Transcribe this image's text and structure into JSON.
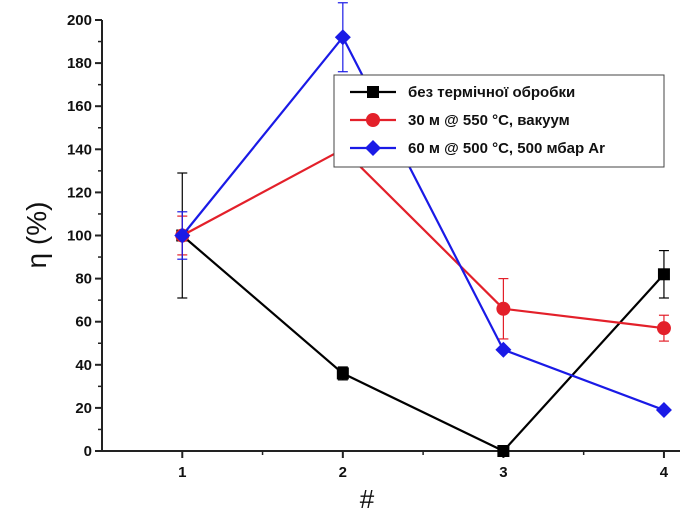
{
  "chart_data": {
    "type": "line",
    "xlabel": "#",
    "ylabel": "η (%)",
    "categories": [
      "1",
      "2",
      "3",
      "4"
    ],
    "x": [
      1,
      2,
      3,
      4
    ],
    "xlim": [
      0.5,
      4.1
    ],
    "ylim": [
      0,
      200
    ],
    "yticks": [
      0,
      20,
      40,
      60,
      80,
      100,
      120,
      140,
      160,
      180,
      200
    ],
    "grid": false,
    "legend_position": "top-right",
    "series": [
      {
        "name": "без термічної обробки",
        "color": "#000000",
        "marker": "square",
        "values": [
          100,
          36,
          0,
          82
        ],
        "error": [
          29,
          3,
          0,
          11
        ]
      },
      {
        "name": "30 м @ 550 °C, вакуум",
        "color": "#e3202a",
        "marker": "circle",
        "values": [
          100,
          140,
          66,
          57
        ],
        "error": [
          9,
          0,
          14,
          6
        ]
      },
      {
        "name": "60 м @ 500 °C, 500 мбар Ar",
        "color": "#1a1ae6",
        "marker": "diamond",
        "values": [
          100,
          192,
          47,
          19
        ],
        "error": [
          11,
          16,
          0,
          0
        ]
      }
    ]
  }
}
